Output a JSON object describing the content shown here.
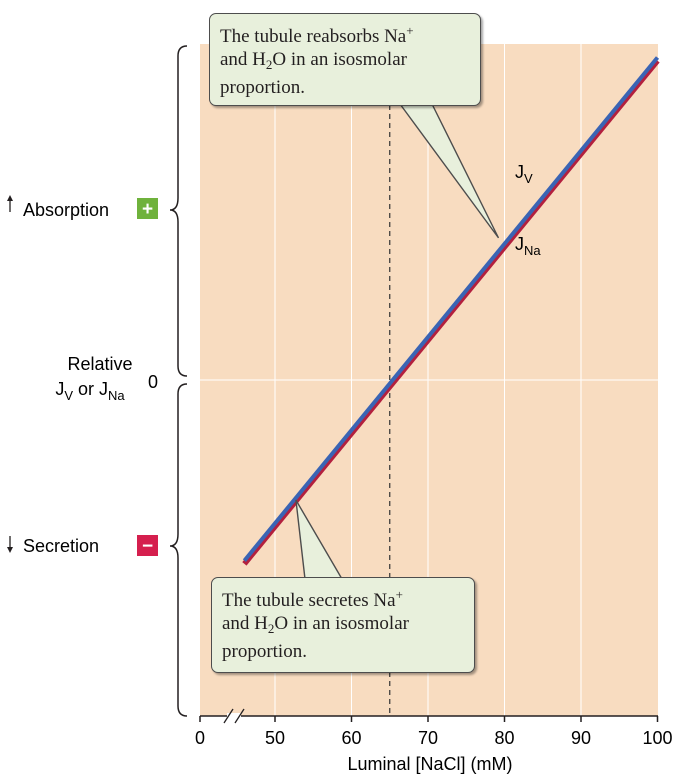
{
  "chart_data": {
    "type": "line",
    "title": "",
    "xlabel": "Luminal [NaCl] (mM)",
    "ylabel": {
      "line1": "Relative",
      "line2_pre": "J",
      "line2_sub1": "V",
      "line2_mid": " or J",
      "line2_sub2": "Na"
    },
    "x_ticks": [
      "0",
      "50",
      "60",
      "70",
      "80",
      "90",
      "100"
    ],
    "xlim": [
      45,
      100
    ],
    "axis_break": true,
    "y_zero_label": "0",
    "y_labels": {
      "absorption": "Absorption",
      "secretion": "Secretion"
    },
    "y_signs": {
      "absorption": "+",
      "secretion": "−"
    },
    "ylim": [
      -1.08,
      1.08
    ],
    "series": [
      {
        "name": "J",
        "name_sub": "V",
        "color": "#3a64b4",
        "x": [
          46,
          100
        ],
        "y": [
          -0.56,
          1.0
        ]
      },
      {
        "name": "J",
        "name_sub": "Na",
        "color": "#b3203e",
        "x": [
          46,
          100
        ],
        "y": [
          -0.57,
          0.99
        ]
      }
    ],
    "reference_line": {
      "x": 65,
      "style": "dashed"
    },
    "annotations": [
      {
        "id": "top",
        "parts": [
          "The tubule reabsorbs Na",
          "+",
          "and H",
          "2",
          "O in an isosmolar",
          "proportion."
        ],
        "points_to": [
          80,
          0.45
        ]
      },
      {
        "id": "bottom",
        "parts": [
          "The tubule secretes Na",
          "+",
          "and H",
          "2",
          "O in an isosmolar",
          "proportion."
        ],
        "points_to": [
          53,
          -0.36
        ]
      }
    ],
    "colors": {
      "plot_background": "#f8dcc0",
      "gridline": "#ffffff"
    },
    "grid": true
  }
}
